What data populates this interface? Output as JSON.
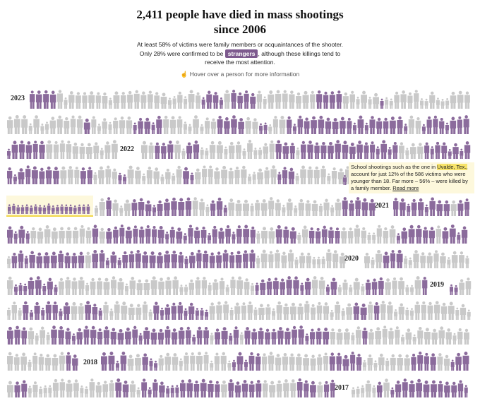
{
  "header": {
    "title_lines": [
      "2,411 people have died in mass shootings",
      "since 2006"
    ],
    "intro": {
      "line1": "At least 58% of victims were family members or acquaintances of the shooter.",
      "before": "Only 28% were confirmed to be ",
      "highlight": "strangers",
      "after": ", although these killings tend to",
      "line3": "receive the most attention."
    },
    "hint": "Hover over a person for more information"
  },
  "years": [
    "2023",
    "2022",
    "2021",
    "2020",
    "2019",
    "2018",
    "2017"
  ],
  "annotation": {
    "before": "School shootings such as the one in ",
    "highlight": "Uvalde, Tex.,",
    "after": " account for just 12% of the 586 victims who were younger than 18. Far more – 56% – were killed by a family member. ",
    "link": "Read more"
  }
}
